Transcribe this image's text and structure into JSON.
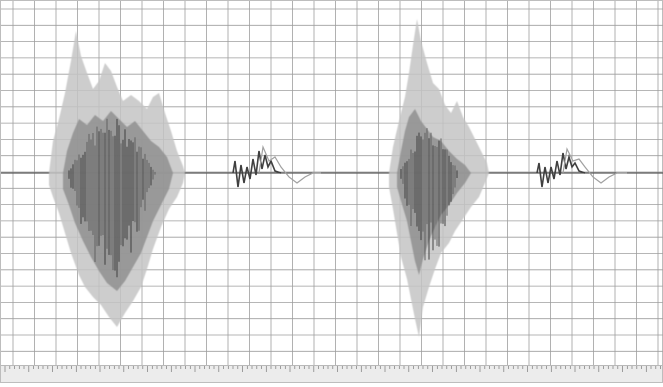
{
  "app": {
    "view": "waveform-display",
    "colors": {
      "background": "#ffffff",
      "grid": "#9e9e9e",
      "wave_dark": "#4f4f4f",
      "wave_mid": "#8a8a8a",
      "wave_light": "#c2c2c2",
      "baseline": "#5a5a5a",
      "ruler": "#ececec"
    }
  },
  "timeline": {
    "tick_labels": [
      "",
      "",
      "",
      "",
      "",
      "",
      "",
      "",
      "",
      "",
      "",
      "",
      "",
      "",
      "",
      "",
      "",
      "",
      "",
      "",
      "",
      "",
      "",
      "",
      "",
      "",
      ""
    ]
  }
}
